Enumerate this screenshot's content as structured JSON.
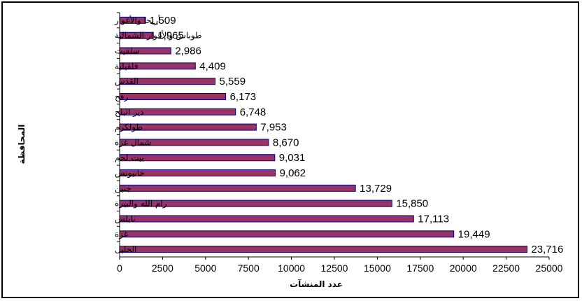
{
  "chart_data": {
    "type": "bar",
    "orientation": "horizontal",
    "categories": [
      "أريحا والأغوار",
      "طوباس والأغوار الشمالية",
      "سلفيت",
      "قلقيلية",
      "القدس",
      "رفح",
      "دير البلح",
      "طولكرم",
      "شمال غزة",
      "بيت لحم",
      "خانيونس",
      "جنين",
      "رام الله والبيرة",
      "نابلس",
      "غزة",
      "الخليل"
    ],
    "values": [
      1509,
      1965,
      2986,
      4409,
      5559,
      6173,
      6748,
      7953,
      8670,
      9031,
      9062,
      13729,
      15850,
      17113,
      19449,
      23716
    ],
    "value_labels": [
      "1,509",
      "1,965",
      "2,986",
      "4,409",
      "5,559",
      "6,173",
      "6,748",
      "7,953",
      "8,670",
      "9,031",
      "9,062",
      "13,729",
      "15,850",
      "17,113",
      "19,449",
      "23,716"
    ],
    "xlabel": "عدد المنشآت",
    "ylabel": "المحافظة",
    "xlim": [
      0,
      25000
    ],
    "xticks": [
      "0",
      "2500",
      "5000",
      "7500",
      "10000",
      "12500",
      "15000",
      "17500",
      "20000",
      "22500",
      "25000"
    ],
    "grid": false,
    "legend": "none",
    "bar_color": "#993366",
    "bar_edge_color": "#000080"
  }
}
